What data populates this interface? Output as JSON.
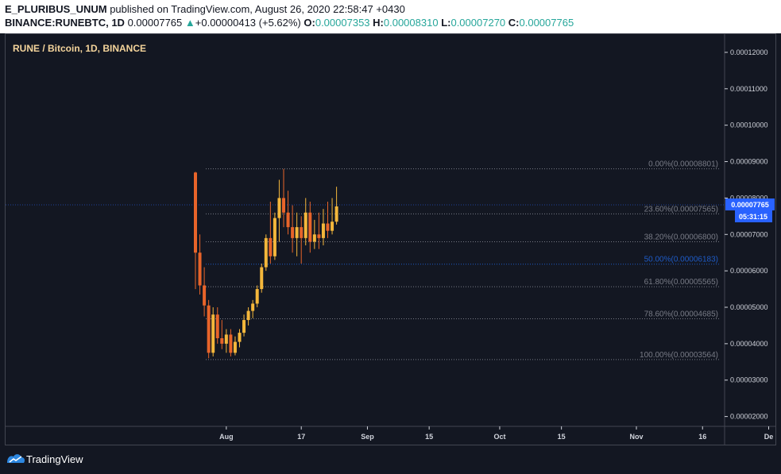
{
  "header": {
    "author": "E_PLURIBUS_UNUM",
    "published_text": "published on TradingView.com, August 26, 2020 22:58:47 +0430",
    "symbol": "BINANCE:RUNEBTC, 1D",
    "last_price": "0.00007765",
    "change": "+0.00000413 (+5.62%)",
    "o_label": "O:",
    "o_value": "0.00007353",
    "h_label": "H:",
    "h_value": "0.00008310",
    "l_label": "L:",
    "l_value": "0.00007270",
    "c_label": "C:",
    "c_value": "0.00007765"
  },
  "chart_title": "RUNE / Bitcoin, 1D, BINANCE",
  "footer": {
    "brand": "TradingView"
  },
  "colors": {
    "background": "#131722",
    "candle_up": "#f4b73b",
    "candle_down": "#e8642a",
    "accent_teal": "#26a69a",
    "price_label_bg": "#2962ff",
    "fib_blue": "#1e5bc6",
    "fib_gray": "#787b86"
  },
  "chart_data": {
    "type": "candlestick",
    "title": "RUNE / Bitcoin, 1D, BINANCE",
    "y_ticks": [
      "0.00012000",
      "0.00011000",
      "0.00010000",
      "0.00009000",
      "0.00008000",
      "0.00007000",
      "0.00006000",
      "0.00005000",
      "0.00004000",
      "0.00003000",
      "0.00002000"
    ],
    "ylim": [
      1.73e-05,
      0.000125
    ],
    "x_ticks": [
      {
        "label": "Aug",
        "day": 7
      },
      {
        "label": "17",
        "day": 24
      },
      {
        "label": "Sep",
        "day": 39
      },
      {
        "label": "15",
        "day": 53
      },
      {
        "label": "Oct",
        "day": 69
      },
      {
        "label": "15",
        "day": 83
      },
      {
        "label": "Nov",
        "day": 100
      },
      {
        "label": "16",
        "day": 115
      },
      {
        "label": "De",
        "day": 130
      }
    ],
    "current_price": {
      "label": "0.00007765",
      "value": 7.765e-05,
      "countdown": "05:31:15"
    },
    "fib_levels": [
      {
        "label": "0.00%(0.00008801)",
        "value": 8.801e-05,
        "color": "gray"
      },
      {
        "label": "23.60%(0.00007565)",
        "value": 7.565e-05,
        "color": "gray"
      },
      {
        "label": "38.20%(0.00006800)",
        "value": 6.8e-05,
        "color": "gray"
      },
      {
        "label": "50.00%(0.00006183)",
        "value": 6.183e-05,
        "color": "blue"
      },
      {
        "label": "61.80%(0.00005565)",
        "value": 5.565e-05,
        "color": "gray"
      },
      {
        "label": "78.60%(0.00004685)",
        "value": 4.685e-05,
        "color": "gray"
      },
      {
        "label": "100.00%(0.00003564)",
        "value": 3.564e-05,
        "color": "gray"
      }
    ],
    "candles": [
      [
        8.7e-05,
        8.72e-05,
        5.5e-05,
        6.5e-05
      ],
      [
        6.5e-05,
        7e-05,
        5.35e-05,
        5.6e-05
      ],
      [
        5.6e-05,
        6.1e-05,
        4.75e-05,
        5.05e-05
      ],
      [
        5.05e-05,
        5.2e-05,
        3.6e-05,
        3.75e-05
      ],
      [
        3.75e-05,
        5e-05,
        3.65e-05,
        4.8e-05
      ],
      [
        4.8e-05,
        5e-05,
        4e-05,
        4.15e-05
      ],
      [
        4.15e-05,
        4.65e-05,
        3.85e-05,
        4e-05
      ],
      [
        4e-05,
        4.4e-05,
        3.75e-05,
        4.25e-05
      ],
      [
        4.25e-05,
        4.4e-05,
        3.65e-05,
        3.75e-05
      ],
      [
        3.75e-05,
        4.2e-05,
        3.68e-05,
        4.05e-05
      ],
      [
        4.05e-05,
        4.4e-05,
        3.9e-05,
        4.3e-05
      ],
      [
        4.3e-05,
        4.8e-05,
        4.2e-05,
        4.65e-05
      ],
      [
        4.65e-05,
        5e-05,
        4.5e-05,
        4.9e-05
      ],
      [
        4.9e-05,
        5.2e-05,
        4.7e-05,
        5.1e-05
      ],
      [
        5.1e-05,
        5.6e-05,
        5e-05,
        5.5e-05
      ],
      [
        5.5e-05,
        6.2e-05,
        5.4e-05,
        6.1e-05
      ],
      [
        6.1e-05,
        7e-05,
        6e-05,
        6.9e-05
      ],
      [
        6.9e-05,
        7.9e-05,
        6.2e-05,
        6.4e-05
      ],
      [
        6.4e-05,
        7.6e-05,
        6.3e-05,
        7.45e-05
      ],
      [
        7.45e-05,
        8.5e-05,
        6.8e-05,
        8e-05
      ],
      [
        8e-05,
        8.8e-05,
        7.2e-05,
        7.6e-05
      ],
      [
        7.6e-05,
        8.2e-05,
        7e-05,
        7.2e-05
      ],
      [
        7.2e-05,
        7.8e-05,
        6.5e-05,
        6.9e-05
      ],
      [
        6.9e-05,
        7.6e-05,
        6.4e-05,
        7.2e-05
      ],
      [
        7.2e-05,
        7.5e-05,
        6.2e-05,
        6.9e-05
      ],
      [
        6.9e-05,
        8e-05,
        6.7e-05,
        7.6e-05
      ],
      [
        7.6e-05,
        7.9e-05,
        6.5e-05,
        6.8e-05
      ],
      [
        6.8e-05,
        7.4e-05,
        6.6e-05,
        7e-05
      ],
      [
        7e-05,
        7.6e-05,
        6.6e-05,
        6.9e-05
      ],
      [
        6.9e-05,
        7.7e-05,
        6.7e-05,
        7.3e-05
      ],
      [
        7.3e-05,
        7.9e-05,
        6.9e-05,
        7.1e-05
      ],
      [
        7.1e-05,
        8e-05,
        7e-05,
        7.35e-05
      ],
      [
        7.35e-05,
        8.31e-05,
        7.27e-05,
        7.77e-05
      ]
    ]
  }
}
